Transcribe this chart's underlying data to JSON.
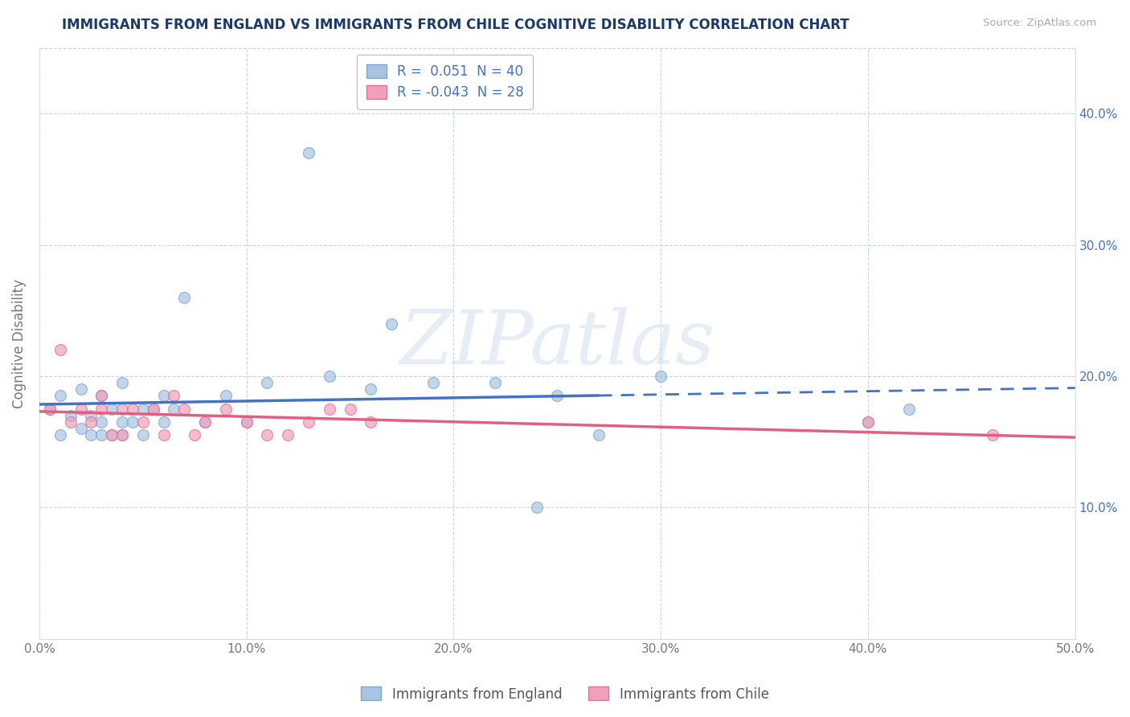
{
  "title": "IMMIGRANTS FROM ENGLAND VS IMMIGRANTS FROM CHILE COGNITIVE DISABILITY CORRELATION CHART",
  "source": "Source: ZipAtlas.com",
  "ylabel": "Cognitive Disability",
  "xlabel": "",
  "xlim": [
    0.0,
    0.5
  ],
  "ylim": [
    0.0,
    0.45
  ],
  "xticks": [
    0.0,
    0.1,
    0.2,
    0.3,
    0.4,
    0.5
  ],
  "yticks": [
    0.1,
    0.2,
    0.3,
    0.4
  ],
  "xtick_labels": [
    "0.0%",
    "10.0%",
    "20.0%",
    "30.0%",
    "40.0%",
    "50.0%"
  ],
  "ytick_labels": [
    "10.0%",
    "20.0%",
    "30.0%",
    "40.0%"
  ],
  "england_R": 0.051,
  "england_N": 40,
  "chile_R": -0.043,
  "chile_N": 28,
  "england_color": "#a8c4e0",
  "chile_color": "#f0a0b8",
  "england_edge_color": "#7aaad0",
  "chile_edge_color": "#e070a0",
  "england_line_color": "#4472c4",
  "chile_line_color": "#e06080",
  "england_scatter_x": [
    0.005,
    0.01,
    0.01,
    0.015,
    0.02,
    0.02,
    0.025,
    0.025,
    0.03,
    0.03,
    0.03,
    0.035,
    0.035,
    0.04,
    0.04,
    0.04,
    0.045,
    0.05,
    0.05,
    0.055,
    0.06,
    0.06,
    0.065,
    0.07,
    0.08,
    0.09,
    0.1,
    0.11,
    0.13,
    0.14,
    0.16,
    0.17,
    0.19,
    0.22,
    0.24,
    0.25,
    0.27,
    0.3,
    0.4,
    0.42
  ],
  "england_scatter_y": [
    0.175,
    0.155,
    0.185,
    0.17,
    0.16,
    0.19,
    0.155,
    0.17,
    0.155,
    0.165,
    0.185,
    0.155,
    0.175,
    0.155,
    0.165,
    0.195,
    0.165,
    0.155,
    0.175,
    0.175,
    0.165,
    0.185,
    0.175,
    0.26,
    0.165,
    0.185,
    0.165,
    0.195,
    0.37,
    0.2,
    0.19,
    0.24,
    0.195,
    0.195,
    0.1,
    0.185,
    0.155,
    0.2,
    0.165,
    0.175
  ],
  "chile_scatter_x": [
    0.005,
    0.01,
    0.015,
    0.02,
    0.025,
    0.03,
    0.03,
    0.035,
    0.04,
    0.04,
    0.045,
    0.05,
    0.055,
    0.06,
    0.065,
    0.07,
    0.075,
    0.08,
    0.09,
    0.1,
    0.11,
    0.12,
    0.13,
    0.14,
    0.15,
    0.16,
    0.4,
    0.46
  ],
  "chile_scatter_y": [
    0.175,
    0.22,
    0.165,
    0.175,
    0.165,
    0.175,
    0.185,
    0.155,
    0.175,
    0.155,
    0.175,
    0.165,
    0.175,
    0.155,
    0.185,
    0.175,
    0.155,
    0.165,
    0.175,
    0.165,
    0.155,
    0.155,
    0.165,
    0.175,
    0.175,
    0.165,
    0.165,
    0.155
  ],
  "watermark_text": "ZIPatlas",
  "background_color": "#ffffff",
  "grid_color": "#c8d4e8",
  "title_color": "#1a3a6b",
  "axis_label_color": "#777777",
  "tick_color": "#777777",
  "right_tick_color": "#4472c4",
  "marker_size": 100,
  "marker_alpha": 0.7,
  "solid_line_end": 0.27,
  "dashed_line_start": 0.27
}
